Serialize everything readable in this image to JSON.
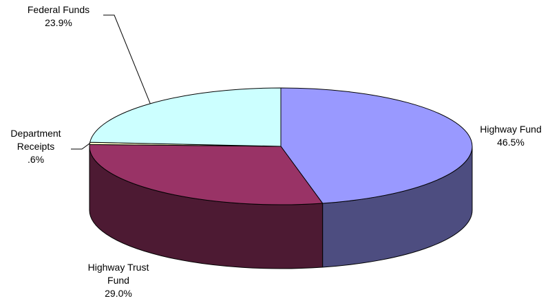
{
  "chart_data": {
    "type": "pie",
    "style": "3d",
    "slices": [
      {
        "name": "Highway Fund",
        "value": 46.5,
        "label_lines": [
          "Highway Fund",
          "46.5%"
        ],
        "color": "#9999ff",
        "side_color": "#4d4d80"
      },
      {
        "name": "Highway Trust Fund",
        "value": 29.0,
        "label_lines": [
          "Highway Trust",
          "Fund",
          "29.0%"
        ],
        "color": "#993366",
        "side_color": "#4d1a33"
      },
      {
        "name": "Department Receipts",
        "value": 0.6,
        "label_lines": [
          "Department",
          "Receipts",
          ".6%"
        ],
        "color": "#ffffcc",
        "side_color": "#808066"
      },
      {
        "name": "Federal Funds",
        "value": 23.9,
        "label_lines": [
          "Federal Funds",
          "23.9%"
        ],
        "color": "#ccffff",
        "side_color": "#668080"
      }
    ],
    "outline_color": "#000000",
    "legend": "none"
  }
}
